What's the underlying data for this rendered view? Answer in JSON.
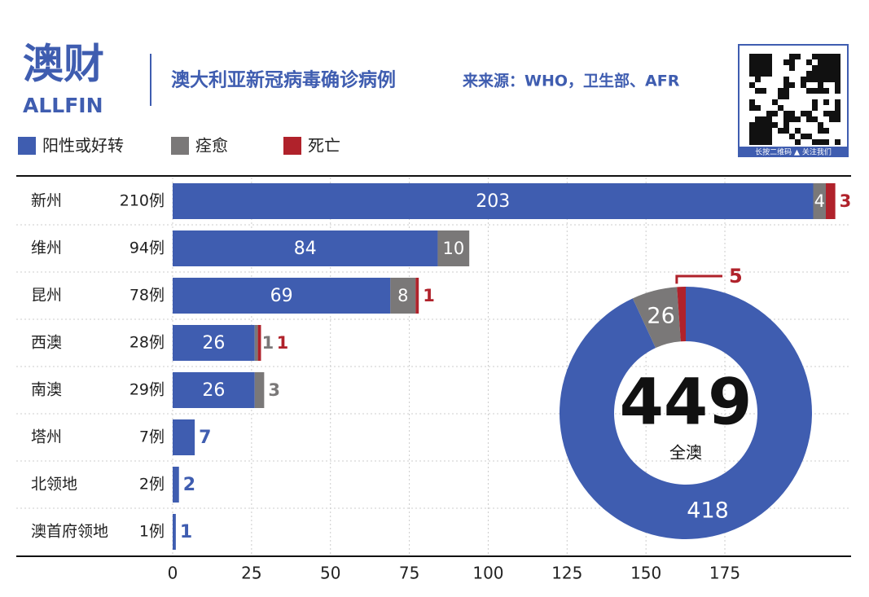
{
  "header": {
    "logo": "澳财",
    "logo_sub": "ALLFIN",
    "title": "澳大利亚新冠病毒确诊病例",
    "source": "来来源：WHO，卫生部、AFR",
    "qr_caption": "长按二维码 ▲ 关注我们"
  },
  "chart_data": [
    {
      "type": "stacked-bar-horizontal",
      "categories": [
        "新州",
        "维州",
        "昆州",
        "西澳",
        "南澳",
        "塔州",
        "北领地",
        "澳首府领地"
      ],
      "totals": [
        210,
        94,
        78,
        28,
        29,
        7,
        2,
        1
      ],
      "total_labels": [
        "210例",
        "94例",
        "78例",
        "28例",
        "29例",
        "7例",
        "2例",
        "1例"
      ],
      "series": [
        {
          "name": "阳性或好转",
          "color": "#3f5db0",
          "values": [
            203,
            84,
            69,
            26,
            26,
            7,
            2,
            1
          ]
        },
        {
          "name": "痊愈",
          "color": "#7a7878",
          "values": [
            4,
            10,
            8,
            1,
            3,
            null,
            null,
            null
          ]
        },
        {
          "name": "死亡",
          "color": "#b0222b",
          "values": [
            3,
            null,
            1,
            1,
            null,
            null,
            null,
            null
          ]
        }
      ],
      "xlim": [
        0,
        215
      ],
      "xticks": [
        0,
        25,
        50,
        75,
        100,
        125,
        150,
        175
      ],
      "grid": true
    },
    {
      "type": "donut",
      "values": [
        418,
        26,
        5
      ],
      "colors": [
        "#3f5db0",
        "#7a7878",
        "#b0222b"
      ],
      "total": 449,
      "total_label": "全澳"
    }
  ]
}
